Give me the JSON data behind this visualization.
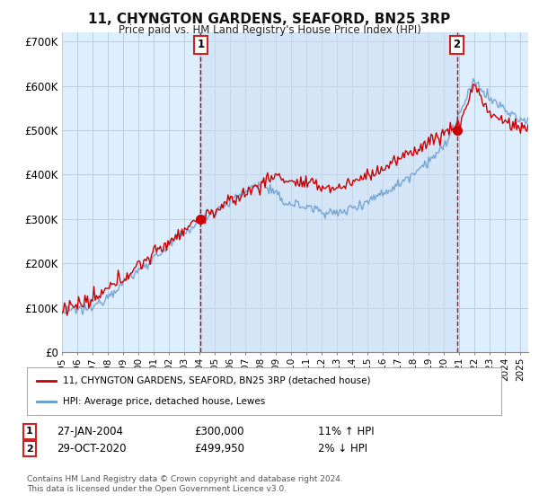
{
  "title": "11, CHYNGTON GARDENS, SEAFORD, BN25 3RP",
  "subtitle": "Price paid vs. HM Land Registry's House Price Index (HPI)",
  "legend_label_red": "11, CHYNGTON GARDENS, SEAFORD, BN25 3RP (detached house)",
  "legend_label_blue": "HPI: Average price, detached house, Lewes",
  "annotation1_date": "27-JAN-2004",
  "annotation1_price": "£300,000",
  "annotation1_hpi": "11% ↑ HPI",
  "annotation2_date": "29-OCT-2020",
  "annotation2_price": "£499,950",
  "annotation2_hpi": "2% ↓ HPI",
  "footnote": "Contains HM Land Registry data © Crown copyright and database right 2024.\nThis data is licensed under the Open Government Licence v3.0.",
  "ylim": [
    0,
    720000
  ],
  "yticks": [
    0,
    100000,
    200000,
    300000,
    400000,
    500000,
    600000,
    700000
  ],
  "ytick_labels": [
    "£0",
    "£100K",
    "£200K",
    "£300K",
    "£400K",
    "£500K",
    "£600K",
    "£700K"
  ],
  "background_color": "#ffffff",
  "plot_bg_color": "#ddeeff",
  "grid_color": "#bbccdd",
  "red_color": "#cc0000",
  "blue_color": "#6699cc",
  "shade_color": "#ddeeff",
  "annotation_line_color": "#cc0000",
  "sale1_x": 2004.07,
  "sale1_y": 300000,
  "sale2_x": 2020.83,
  "sale2_y": 499950,
  "xmin": 1995.0,
  "xmax": 2025.5
}
